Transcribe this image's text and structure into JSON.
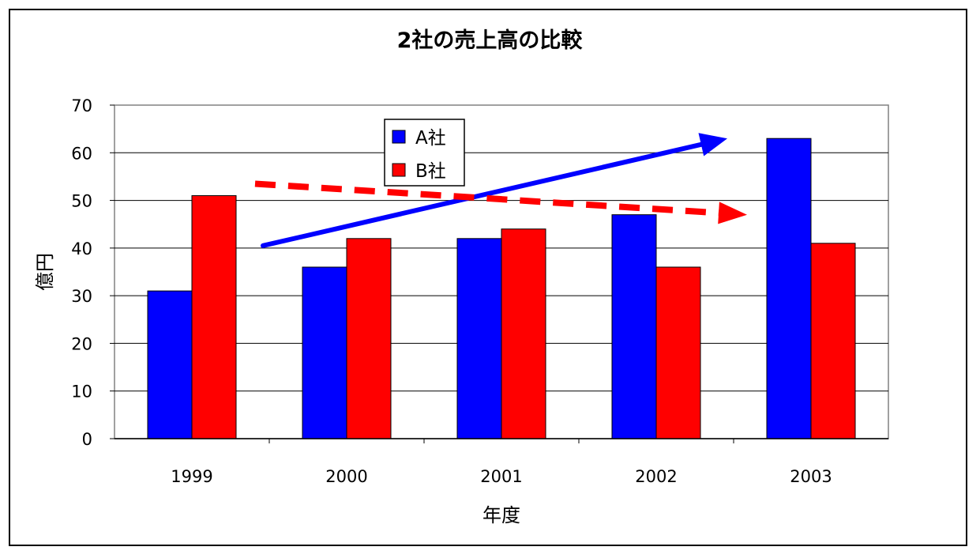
{
  "chart_data": {
    "type": "bar",
    "title": "2社の売上高の比較",
    "xlabel": "年度",
    "ylabel": "億円",
    "categories": [
      "1999",
      "2000",
      "2001",
      "2002",
      "2003"
    ],
    "series": [
      {
        "name": "A社",
        "color": "#0000ff",
        "values": [
          31,
          36,
          42,
          47,
          63
        ]
      },
      {
        "name": "B社",
        "color": "#ff0000",
        "values": [
          51,
          42,
          44,
          36,
          41
        ]
      }
    ],
    "ylim": [
      0,
      70
    ],
    "yticks": [
      "0",
      "10",
      "20",
      "30",
      "40",
      "50",
      "60",
      "70"
    ],
    "grid": true,
    "legend_position": "top-center",
    "annotations": [
      {
        "kind": "arrow",
        "style": "solid",
        "color": "#0000ff",
        "from": [
          "1999-2000",
          40.5
        ],
        "to": [
          "2002-2003",
          63
        ]
      },
      {
        "kind": "arrow",
        "style": "dashed",
        "color": "#ff0000",
        "from": [
          "1999-2000",
          53.5
        ],
        "to": [
          "2002-2003",
          47
        ]
      }
    ]
  }
}
